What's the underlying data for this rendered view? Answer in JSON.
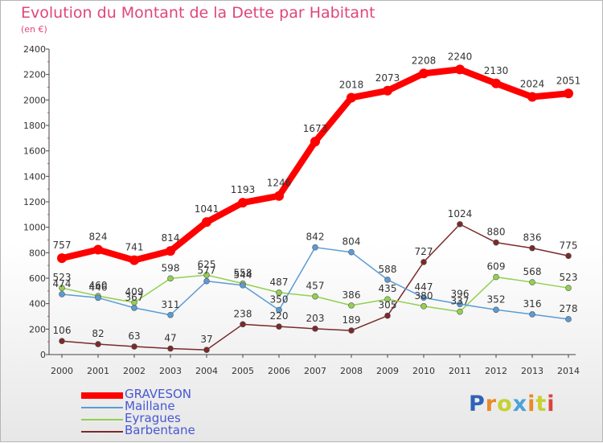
{
  "header": {
    "title": "Evolution du Montant de la Dette par Habitant",
    "subtitle": "(en €)"
  },
  "brand": {
    "text": "Proxiti",
    "colors": [
      "#2f63b8",
      "#e98a27",
      "#c7d12f",
      "#4fa0d8",
      "#e98a27",
      "#c7d12f",
      "#d9463b"
    ]
  },
  "chart_data": {
    "type": "line",
    "title": "Evolution du Montant de la Dette par Habitant",
    "subtitle": "(en €)",
    "x": [
      "2000",
      "2001",
      "2002",
      "2003",
      "2004",
      "2005",
      "2006",
      "2007",
      "2008",
      "2009",
      "2010",
      "2011",
      "2012",
      "2013",
      "2014"
    ],
    "ylim": [
      0,
      2400
    ],
    "yticks": [
      0,
      200,
      400,
      600,
      800,
      1000,
      1200,
      1400,
      1600,
      1800,
      2000,
      2200,
      2400
    ],
    "grid": false,
    "legend_position": "bottom-left",
    "series": [
      {
        "name": "GRAVESON",
        "color": "#ff0000",
        "values": [
          757,
          824,
          741,
          814,
          1041,
          1193,
          1246,
          1673,
          2018,
          2073,
          2208,
          2240,
          2130,
          2024,
          2051
        ]
      },
      {
        "name": "Maillane",
        "color": "#5b9bd5",
        "values": [
          474,
          446,
          367,
          311,
          577,
          544,
          350,
          842,
          804,
          588,
          447,
          396,
          352,
          316,
          278
        ]
      },
      {
        "name": "Eyragues",
        "color": "#92d050",
        "values": [
          523,
          460,
          409,
          598,
          625,
          558,
          487,
          457,
          386,
          435,
          380,
          337,
          609,
          568,
          523
        ]
      },
      {
        "name": "Barbentane",
        "color": "#7a2a2a",
        "values": [
          106,
          82,
          63,
          47,
          37,
          238,
          220,
          203,
          189,
          305,
          727,
          1024,
          880,
          836,
          775
        ]
      }
    ]
  }
}
